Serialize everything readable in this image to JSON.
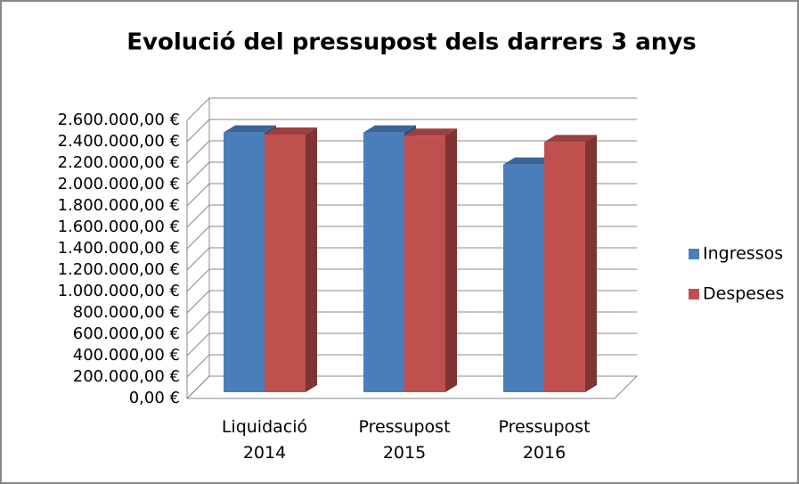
{
  "chart_data": {
    "type": "bar3d",
    "title": "Evolució del pressupost dels darrers 3 anys",
    "categories": [
      "Liquidació 2014",
      "Pressupost 2015",
      "Pressupost 2016"
    ],
    "series": [
      {
        "name": "Ingressos",
        "color": "#4a7ebb",
        "values": [
          2420000,
          2420000,
          2120000
        ]
      },
      {
        "name": "Despeses",
        "color": "#c0504d",
        "values": [
          2400000,
          2390000,
          2330000
        ]
      }
    ],
    "ylim": [
      0,
      2600000
    ],
    "yticks": [
      {
        "value": 0,
        "label": "0,00 €"
      },
      {
        "value": 200000,
        "label": "200.000,00 €"
      },
      {
        "value": 400000,
        "label": "400.000,00 €"
      },
      {
        "value": 600000,
        "label": "600.000,00 €"
      },
      {
        "value": 800000,
        "label": "800.000,00 €"
      },
      {
        "value": 1000000,
        "label": "1.000.000,00 €"
      },
      {
        "value": 1200000,
        "label": "1.200.000,00 €"
      },
      {
        "value": 1400000,
        "label": "1.400.000,00 €"
      },
      {
        "value": 1600000,
        "label": "1.600.000,00 €"
      },
      {
        "value": 1800000,
        "label": "1.800.000,00 €"
      },
      {
        "value": 2000000,
        "label": "2.000.000,00 €"
      },
      {
        "value": 2200000,
        "label": "2.200.000,00 €"
      },
      {
        "value": 2400000,
        "label": "2.400.000,00 €"
      },
      {
        "value": 2600000,
        "label": "2.600.000,00 €"
      }
    ],
    "grid": true,
    "legend": "right"
  }
}
